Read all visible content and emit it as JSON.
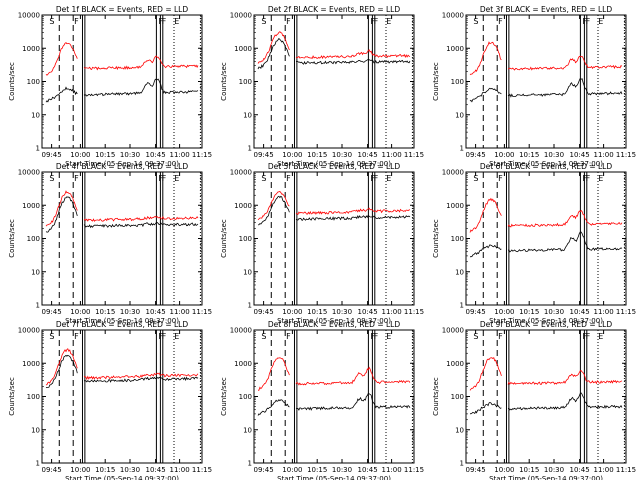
{
  "chart_data": [
    {
      "type": "line",
      "title": "Det 1f BLACK = Events, RED = LLD",
      "xlabel": "Start Time (05-Sep-14 09:37:00)",
      "ylabel": "Counts/sec",
      "yscale": "log",
      "ylim": [
        1,
        10000
      ],
      "x_ticks": [
        "09:45",
        "10:00",
        "10:15",
        "10:30",
        "10:45",
        "11:00",
        "11:15"
      ],
      "y_ticks": [
        "1",
        "10",
        "100",
        "1000",
        "10000"
      ],
      "markers": [
        "S",
        "F",
        "F",
        "F",
        "E"
      ],
      "series": [
        {
          "color": "#000000",
          "baseline": 35,
          "end": 50,
          "spike_peak": 60,
          "late_peak": 120
        },
        {
          "color": "#ff0000",
          "baseline": 230,
          "end": 290,
          "spike_peak": 1500,
          "late_peak": 550
        }
      ]
    },
    {
      "type": "line",
      "title": "Det 2f BLACK = Events, RED = LLD",
      "xlabel": "Start Time (05-Sep-14 09:37:00)",
      "ylabel": "Counts/sec",
      "yscale": "log",
      "ylim": [
        1,
        10000
      ],
      "x_ticks": [
        "09:45",
        "10:00",
        "10:15",
        "10:30",
        "10:45",
        "11:00",
        "11:15"
      ],
      "y_ticks": [
        "1",
        "10",
        "100",
        "1000",
        "10000"
      ],
      "markers": [
        "S",
        "F",
        "F",
        "F",
        "E"
      ],
      "series": [
        {
          "color": "#000000",
          "baseline": 350,
          "end": 400,
          "spike_peak": 1800,
          "late_peak": 400
        },
        {
          "color": "#ff0000",
          "baseline": 500,
          "end": 600,
          "spike_peak": 3000,
          "late_peak": 800
        }
      ]
    },
    {
      "type": "line",
      "title": "Det 3f BLACK = Events, RED = LLD",
      "xlabel": "Start Time (05-Sep-14 09:37:00)",
      "ylabel": "Counts/sec",
      "yscale": "log",
      "ylim": [
        1,
        10000
      ],
      "x_ticks": [
        "09:45",
        "10:00",
        "10:15",
        "10:30",
        "10:45",
        "11:00",
        "11:15"
      ],
      "y_ticks": [
        "1",
        "10",
        "100",
        "1000",
        "10000"
      ],
      "markers": [
        "S",
        "F",
        "F",
        "F",
        "E"
      ],
      "series": [
        {
          "color": "#000000",
          "baseline": 35,
          "end": 45,
          "spike_peak": 60,
          "late_peak": 120
        },
        {
          "color": "#ff0000",
          "baseline": 220,
          "end": 280,
          "spike_peak": 1500,
          "late_peak": 600
        }
      ]
    },
    {
      "type": "line",
      "title": "Det 4f BLACK = Events, RED = LLD",
      "xlabel": "Start Time (05-Sep-14 09:37:00)",
      "ylabel": "Counts/sec",
      "yscale": "log",
      "ylim": [
        1,
        10000
      ],
      "x_ticks": [
        "09:45",
        "10:00",
        "10:15",
        "10:30",
        "10:45",
        "11:00",
        "11:15"
      ],
      "y_ticks": [
        "1",
        "10",
        "100",
        "1000",
        "10000"
      ],
      "markers": [
        "S",
        "F",
        "F",
        "F",
        "E"
      ],
      "series": [
        {
          "color": "#000000",
          "baseline": 220,
          "end": 270,
          "spike_peak": 1700,
          "late_peak": 260
        },
        {
          "color": "#ff0000",
          "baseline": 330,
          "end": 420,
          "spike_peak": 2500,
          "late_peak": 400
        }
      ]
    },
    {
      "type": "line",
      "title": "Det 5f BLACK = Events, RED = LLD",
      "xlabel": "Start Time (05-Sep-14 09:37:00)",
      "ylabel": "Counts/sec",
      "yscale": "log",
      "ylim": [
        1,
        10000
      ],
      "x_ticks": [
        "09:45",
        "10:00",
        "10:15",
        "10:30",
        "10:45",
        "11:00",
        "11:15"
      ],
      "y_ticks": [
        "1",
        "10",
        "100",
        "1000",
        "10000"
      ],
      "markers": [
        "S",
        "F",
        "F",
        "F",
        "E"
      ],
      "series": [
        {
          "color": "#000000",
          "baseline": 350,
          "end": 450,
          "spike_peak": 1800,
          "late_peak": 420
        },
        {
          "color": "#ff0000",
          "baseline": 520,
          "end": 700,
          "spike_peak": 2500,
          "late_peak": 650
        }
      ]
    },
    {
      "type": "line",
      "title": "Det 6f BLACK = Events, RED = LLD",
      "xlabel": "Start Time (05-Sep-14 09:37:00)",
      "ylabel": "Counts/sec",
      "yscale": "log",
      "ylim": [
        1,
        10000
      ],
      "x_ticks": [
        "09:45",
        "10:00",
        "10:15",
        "10:30",
        "10:45",
        "11:00",
        "11:15"
      ],
      "y_ticks": [
        "1",
        "10",
        "100",
        "1000",
        "10000"
      ],
      "markers": [
        "S",
        "F",
        "F",
        "F",
        "E"
      ],
      "series": [
        {
          "color": "#000000",
          "baseline": 40,
          "end": 50,
          "spike_peak": 60,
          "late_peak": 150
        },
        {
          "color": "#ff0000",
          "baseline": 230,
          "end": 280,
          "spike_peak": 1500,
          "late_peak": 700
        }
      ]
    },
    {
      "type": "line",
      "title": "Det 7f BLACK = Events, RED = LLD",
      "xlabel": "Start Time (05-Sep-14 09:37:00)",
      "ylabel": "Counts/sec",
      "yscale": "log",
      "ylim": [
        1,
        10000
      ],
      "x_ticks": [
        "09:45",
        "10:00",
        "10:15",
        "10:30",
        "10:45",
        "11:00",
        "11:15"
      ],
      "y_ticks": [
        "1",
        "10",
        "100",
        "1000",
        "10000"
      ],
      "markers": [
        "S",
        "F",
        "F",
        "F",
        "E"
      ],
      "series": [
        {
          "color": "#000000",
          "baseline": 260,
          "end": 350,
          "spike_peak": 1700,
          "late_peak": 320
        },
        {
          "color": "#ff0000",
          "baseline": 330,
          "end": 450,
          "spike_peak": 2500,
          "late_peak": 420
        }
      ]
    },
    {
      "type": "line",
      "title": "Det 8f BLACK = Events, RED = LLD",
      "xlabel": "Start Time (05-Sep-14 09:37:00)",
      "ylabel": "Counts/sec",
      "yscale": "log",
      "ylim": [
        1,
        10000
      ],
      "x_ticks": [
        "09:45",
        "10:00",
        "10:15",
        "10:30",
        "10:45",
        "11:00",
        "11:15"
      ],
      "y_ticks": [
        "1",
        "10",
        "100",
        "1000",
        "10000"
      ],
      "markers": [
        "S",
        "F",
        "F",
        "F",
        "E"
      ],
      "series": [
        {
          "color": "#000000",
          "baseline": 40,
          "end": 50,
          "spike_peak": 80,
          "late_peak": 120
        },
        {
          "color": "#ff0000",
          "baseline": 230,
          "end": 280,
          "spike_peak": 1500,
          "late_peak": 700
        }
      ]
    },
    {
      "type": "line",
      "title": "Det 9f BLACK = Events, RED = LLD",
      "xlabel": "Start Time (05-Sep-14 09:37:00)",
      "ylabel": "Counts/sec",
      "yscale": "log",
      "ylim": [
        1,
        10000
      ],
      "x_ticks": [
        "09:45",
        "10:00",
        "10:15",
        "10:30",
        "10:45",
        "11:00",
        "11:15"
      ],
      "y_ticks": [
        "1",
        "10",
        "100",
        "1000",
        "10000"
      ],
      "markers": [
        "S",
        "F",
        "F",
        "F",
        "E"
      ],
      "series": [
        {
          "color": "#000000",
          "baseline": 40,
          "end": 50,
          "spike_peak": 60,
          "late_peak": 120
        },
        {
          "color": "#ff0000",
          "baseline": 230,
          "end": 280,
          "spike_peak": 1500,
          "late_peak": 600
        }
      ]
    }
  ]
}
